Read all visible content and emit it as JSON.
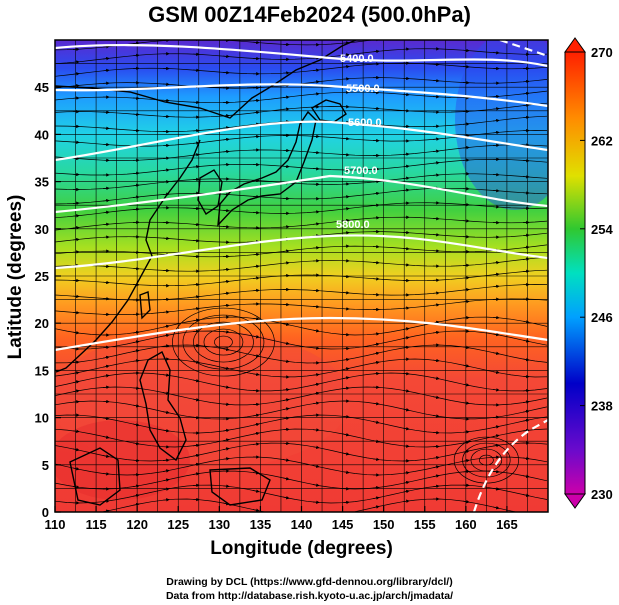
{
  "title": "GSM 00Z14Feb2024 (500.0hPa)",
  "map": {
    "xlabel": "Longitude (degrees)",
    "ylabel": "Latitude  (degrees)",
    "lon_range": [
      110,
      170
    ],
    "lat_range": [
      0,
      50
    ],
    "x_ticks": [
      "110",
      "115",
      "120",
      "125",
      "130",
      "135",
      "140",
      "145",
      "150",
      "155",
      "160",
      "165"
    ],
    "y_ticks": [
      "0",
      "5",
      "10",
      "15",
      "20",
      "25",
      "30",
      "35",
      "40",
      "45"
    ],
    "contour_labels": [
      "5400.0",
      "5500.0",
      "5600.0",
      "5700.0",
      "5800.0"
    ],
    "colorbar": {
      "ticks": [
        "230",
        "238",
        "246",
        "254",
        "262",
        "270"
      ],
      "range": [
        230,
        270
      ],
      "colors": [
        "#cc00aa",
        "#0000c8",
        "#00a0ff",
        "#00e0c0",
        "#30c830",
        "#e0e000",
        "#ff8c00",
        "#ff2000"
      ]
    },
    "field": "temperature shading (K) with geopotential height contours and wind streamlines"
  },
  "credits": {
    "line1": "Drawing by DCL (https://www.gfd-dennou.org/library/dcl/)",
    "line2": "Data from http://database.rish.kyoto-u.ac.jp/arch/jmadata/"
  }
}
